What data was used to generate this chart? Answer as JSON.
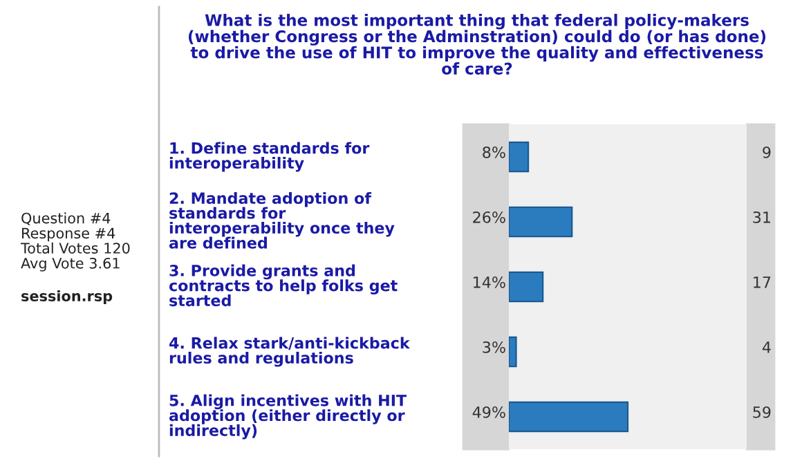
{
  "chart_data": {
    "type": "bar",
    "orientation": "horizontal",
    "title": "What is the most important thing that federal policy-makers\n(whether Congress or the Adminstration) could do (or has done)\nto drive the use of HIT to improve the quality and effectiveness\nof care?",
    "categories": [
      "1. Define standards for\ninteroperability",
      "2. Mandate adoption of\nstandards for\ninteroperability once they\nare defined",
      "3. Provide grants and\ncontracts to help folks get\nstarted",
      "4. Relax stark/anti-kickback\nrules and regulations",
      "5. Align incentives with HIT\nadoption (either directly or\nindirectly)"
    ],
    "values": [
      8,
      26,
      14,
      3,
      49
    ],
    "value_labels": [
      "8%",
      "26%",
      "14%",
      "3%",
      "49%"
    ],
    "color": "#2b7bbf",
    "legend": false,
    "annotations": [
      "Question #4\nResponse #4\nTotal Votes 120\nAvg Vote 3.61",
      "session.rsp",
      "9",
      "31",
      "17",
      "4",
      "59"
    ]
  }
}
